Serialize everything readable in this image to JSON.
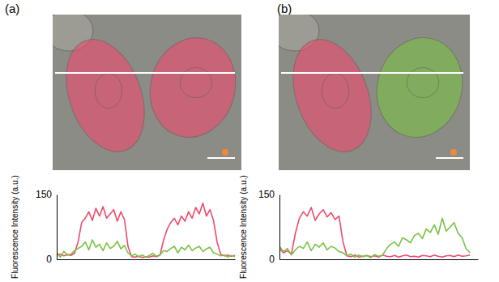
{
  "chart_data": [
    {
      "type": "line",
      "title": "(a)",
      "y_label": "Fluorescence Intensity (a.u.)",
      "x": [
        0,
        2,
        4,
        6,
        8,
        10,
        12,
        14,
        16,
        18,
        20,
        22,
        24,
        26,
        28,
        30,
        32,
        34,
        36,
        38,
        40,
        42,
        44,
        46,
        48,
        50,
        52,
        54,
        56,
        58,
        60,
        62,
        64,
        66,
        68,
        70,
        72,
        74,
        76,
        78,
        80,
        82,
        84,
        86,
        88,
        90,
        92,
        94,
        96,
        98,
        100
      ],
      "xlim": [
        0,
        100
      ],
      "ylim": [
        0,
        150
      ],
      "yticks": [
        0,
        150
      ],
      "tick_labels": "y",
      "series": [
        {
          "color": "#ee4a6e",
          "values": [
            10,
            12,
            8,
            11,
            9,
            14,
            40,
            85,
            95,
            110,
            90,
            118,
            100,
            122,
            95,
            105,
            115,
            88,
            110,
            92,
            30,
            6,
            5,
            7,
            4,
            6,
            5,
            8,
            6,
            10,
            45,
            70,
            85,
            95,
            80,
            100,
            88,
            110,
            95,
            120,
            105,
            130,
            100,
            115,
            90,
            40,
            12,
            8,
            10,
            7,
            9
          ]
        },
        {
          "color": "#7ac143",
          "values": [
            15,
            5,
            18,
            10,
            12,
            20,
            25,
            30,
            40,
            22,
            45,
            28,
            35,
            20,
            38,
            25,
            30,
            42,
            24,
            32,
            15,
            8,
            12,
            6,
            10,
            5,
            9,
            14,
            7,
            11,
            20,
            18,
            25,
            30,
            15,
            28,
            22,
            33,
            20,
            26,
            30,
            18,
            24,
            28,
            15,
            12,
            8,
            10,
            5,
            9,
            6
          ]
        }
      ]
    },
    {
      "type": "line",
      "title": "(b)",
      "y_label": "Fluorescence Intensity (a.u.)",
      "x": [
        0,
        2,
        4,
        6,
        8,
        10,
        12,
        14,
        16,
        18,
        20,
        22,
        24,
        26,
        28,
        30,
        32,
        34,
        36,
        38,
        40,
        42,
        44,
        46,
        48,
        50,
        52,
        54,
        56,
        58,
        60,
        62,
        64,
        66,
        68,
        70,
        72,
        74,
        76,
        78,
        80,
        82,
        84,
        86,
        88,
        90,
        92,
        94,
        96,
        98,
        100
      ],
      "xlim": [
        0,
        100
      ],
      "ylim": [
        0,
        150
      ],
      "yticks": [
        0,
        150
      ],
      "tick_labels": "y",
      "series": [
        {
          "color": "#ee4a6e",
          "values": [
            25,
            15,
            20,
            12,
            60,
            95,
            110,
            100,
            120,
            90,
            105,
            115,
            98,
            108,
            92,
            100,
            40,
            8,
            6,
            10,
            5,
            7,
            9,
            6,
            8,
            5,
            10,
            7,
            6,
            9,
            5,
            8,
            10,
            6,
            7,
            5,
            9,
            8,
            6,
            10,
            7,
            5,
            8,
            9,
            6,
            10,
            7,
            8,
            10,
            null,
            null
          ]
        },
        {
          "color": "#7ac143",
          "values": [
            30,
            18,
            25,
            10,
            22,
            30,
            25,
            40,
            20,
            35,
            28,
            38,
            22,
            30,
            26,
            18,
            15,
            8,
            12,
            5,
            10,
            6,
            9,
            4,
            11,
            7,
            10,
            25,
            35,
            40,
            30,
            50,
            45,
            38,
            55,
            60,
            48,
            70,
            62,
            80,
            58,
            95,
            65,
            75,
            85,
            60,
            50,
            25,
            15,
            null,
            null
          ]
        }
      ]
    }
  ]
}
